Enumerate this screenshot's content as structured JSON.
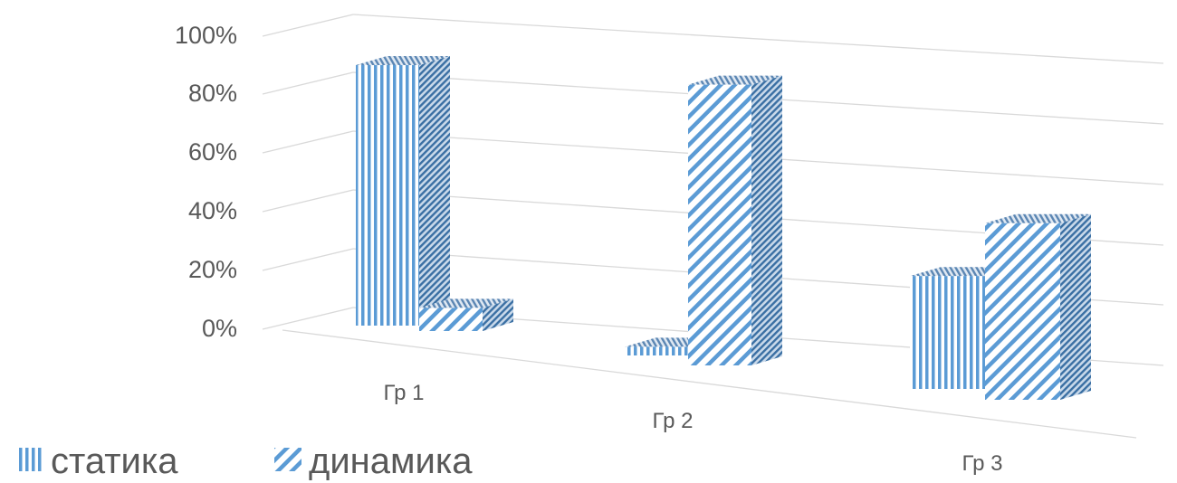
{
  "chart_data": {
    "type": "bar",
    "three_d": true,
    "categories": [
      "Гр 1",
      "Гр 2",
      "Гр 3"
    ],
    "series": [
      {
        "name": "статика",
        "pattern": "vertical-stripes",
        "values": [
          90,
          3,
          39
        ]
      },
      {
        "name": "динамика",
        "pattern": "diagonal-stripes",
        "values": [
          8,
          97,
          61
        ]
      }
    ],
    "ylim": [
      0,
      100
    ],
    "y_ticks": [
      "0%",
      "20%",
      "40%",
      "60%",
      "80%",
      "100%"
    ],
    "grid": true,
    "legend": "bottom-left",
    "colors": {
      "stripe": "#5b9bd5",
      "background": "#ffffff",
      "grid": "#d9d9d9",
      "text": "#595959"
    }
  }
}
